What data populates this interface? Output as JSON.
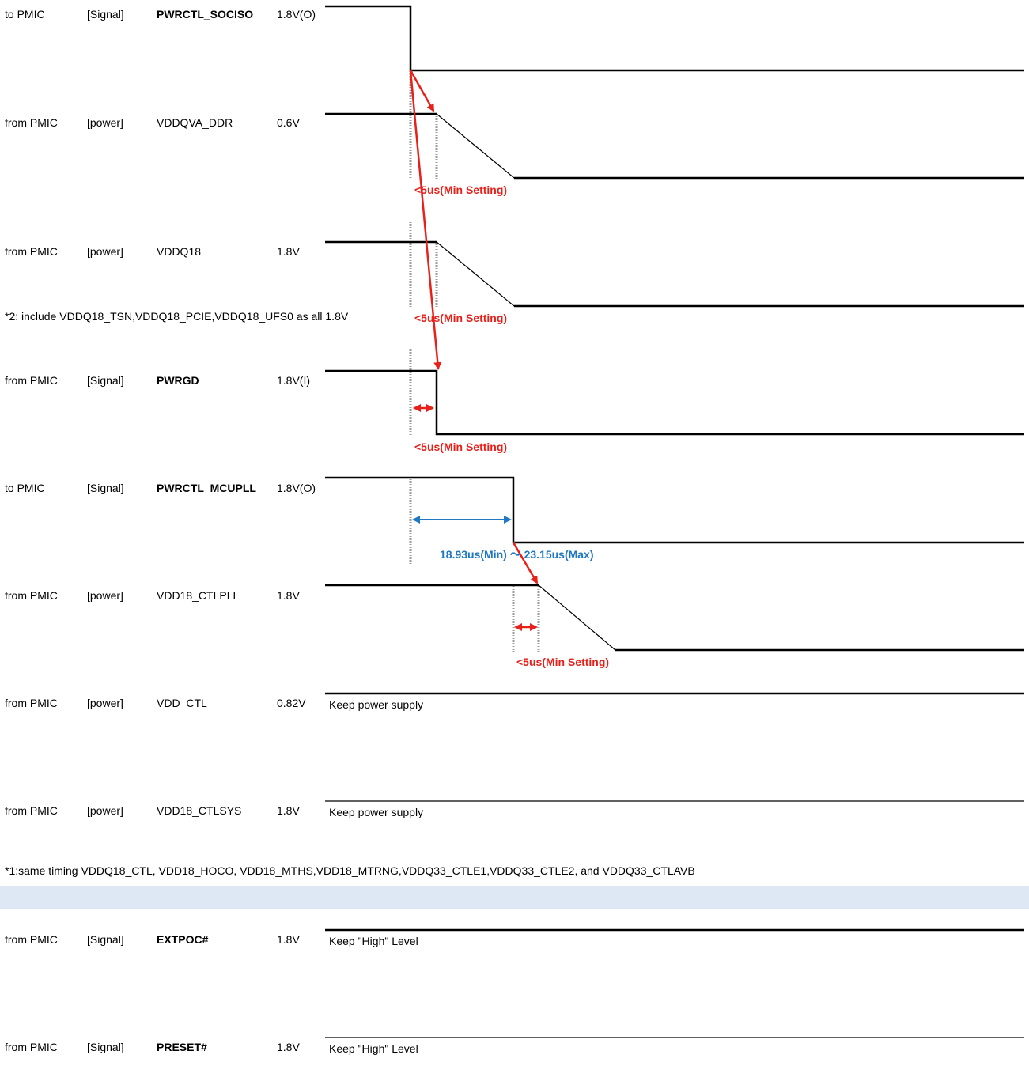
{
  "rows": [
    {
      "dir": "to PMIC",
      "type": "[Signal]",
      "name": "PWRCTL_SOCISO",
      "bold": true,
      "level": "1.8V(O)"
    },
    {
      "dir": "from PMIC",
      "type": "[power]",
      "name": "VDDQVA_DDR",
      "bold": false,
      "level": "0.6V"
    },
    {
      "dir": "from PMIC",
      "type": "[power]",
      "name": "VDDQ18",
      "bold": false,
      "level": "1.8V"
    },
    {
      "dir": "from PMIC",
      "type": "[Signal]",
      "name": "PWRGD",
      "bold": true,
      "level": "1.8V(I)"
    },
    {
      "dir": "to PMIC",
      "type": "[Signal]",
      "name": "PWRCTL_MCUPLL",
      "bold": true,
      "level": "1.8V(O)"
    },
    {
      "dir": "from PMIC",
      "type": "[power]",
      "name": "VDD18_CTLPLL",
      "bold": false,
      "level": "1.8V"
    },
    {
      "dir": "from PMIC",
      "type": "[power]",
      "name": "VDD_CTL",
      "bold": false,
      "level": "0.82V"
    },
    {
      "dir": "from PMIC",
      "type": "[power]",
      "name": "VDD18_CTLSYS",
      "bold": false,
      "level": "1.8V"
    },
    {
      "dir": "from PMIC",
      "type": "[Signal]",
      "name": "EXTPOC#",
      "bold": true,
      "level": "1.8V"
    },
    {
      "dir": "from PMIC",
      "type": "[Signal]",
      "name": "PRESET#",
      "bold": true,
      "level": "1.8V"
    }
  ],
  "notes": {
    "note2": "*2: include VDDQ18_TSN,VDDQ18_PCIE,VDDQ18_UFS0 as all 1.8V",
    "note1": "*1:same timing VDDQ18_CTL, VDD18_HOCO, VDD18_MTHS,VDD18_MTRNG,VDDQ33_CTLE1,VDDQ33_CTLE2, and VDDQ33_CTLAVB"
  },
  "annotations": {
    "min5_a": "<5us(Min Setting)",
    "min5_b": "<5us(Min Setting)",
    "min5_c": "<5us(Min Setting)",
    "min5_d": "<5us(Min Setting)",
    "blue_range": "18.93us(Min) 〜 23.15us(Max)",
    "keep_power_1": "Keep power supply",
    "keep_power_2": "Keep power supply",
    "keep_high_1": "Keep \"High\" Level",
    "keep_high_2": "Keep \"High\" Level"
  },
  "colors": {
    "red": "#e8201a",
    "blue": "#1f78c1",
    "band": "#dde8f4"
  }
}
